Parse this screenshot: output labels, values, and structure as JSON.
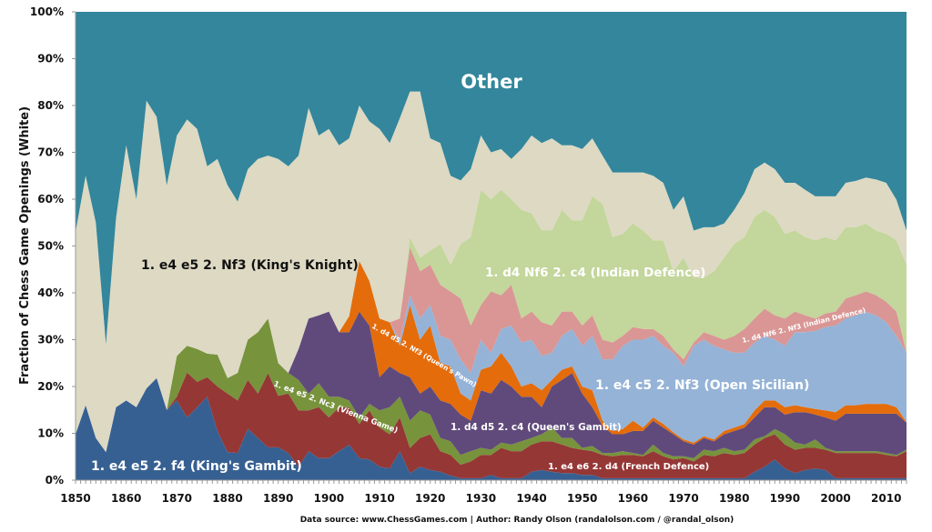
{
  "chart_data": {
    "type": "area",
    "stacked": true,
    "ylabel": "Fraction of Chess Game Openings (White)",
    "xlabel": "",
    "footer": "Data source: www.ChessGames.com | Author: Randy Olson (randalolson.com / @randal_olson)",
    "xlim": [
      1850,
      2014
    ],
    "ylim": [
      0,
      100
    ],
    "x_ticks": [
      "1850",
      "1860",
      "1870",
      "1880",
      "1890",
      "1900",
      "1910",
      "1920",
      "1930",
      "1940",
      "1950",
      "1960",
      "1970",
      "1980",
      "1990",
      "2000",
      "2010"
    ],
    "y_ticks": [
      "0%",
      "10%",
      "20%",
      "30%",
      "40%",
      "50%",
      "60%",
      "70%",
      "80%",
      "90%",
      "100%"
    ],
    "grid": false,
    "legend": "none (labels drawn directly on areas)",
    "x": [
      1850,
      1852,
      1854,
      1856,
      1858,
      1860,
      1862,
      1864,
      1866,
      1868,
      1870,
      1872,
      1874,
      1876,
      1878,
      1880,
      1882,
      1884,
      1886,
      1888,
      1890,
      1892,
      1894,
      1896,
      1898,
      1900,
      1902,
      1904,
      1906,
      1908,
      1910,
      1912,
      1914,
      1916,
      1918,
      1920,
      1922,
      1924,
      1926,
      1928,
      1930,
      1932,
      1934,
      1936,
      1938,
      1940,
      1942,
      1944,
      1946,
      1948,
      1950,
      1952,
      1954,
      1956,
      1958,
      1960,
      1962,
      1964,
      1966,
      1968,
      1970,
      1972,
      1974,
      1976,
      1978,
      1980,
      1982,
      1984,
      1986,
      1988,
      1990,
      1992,
      1994,
      1996,
      1998,
      2000,
      2002,
      2004,
      2006,
      2008,
      2010,
      2012,
      2014
    ],
    "series": [
      {
        "name": "1. e4 e5 2. f4 (King's Gambit)",
        "color": "#376092",
        "text_color": "#ffffff",
        "values": [
          9.8,
          16,
          9,
          6,
          15.6,
          17,
          15.6,
          19.6,
          21.8,
          15,
          17,
          13.4,
          15.6,
          17.8,
          10.5,
          6,
          5.8,
          11,
          9,
          7,
          7,
          5.8,
          2.9,
          6.2,
          4.7,
          4.7,
          6.2,
          7.6,
          4.7,
          4.4,
          2.9,
          2.5,
          6.2,
          1.5,
          2.9,
          2.2,
          1.8,
          1,
          0.4,
          0.4,
          0.4,
          1.1,
          0.4,
          0.4,
          0.4,
          1.8,
          2.2,
          1.8,
          1.5,
          1.5,
          1.1,
          1.1,
          0.4,
          0.4,
          0.4,
          0.4,
          0.4,
          0.4,
          0.4,
          0.4,
          0.4,
          0.4,
          0.4,
          0.4,
          0.4,
          0.4,
          0.4,
          1.8,
          2.9,
          4.4,
          2.5,
          1.5,
          2.2,
          2.5,
          2.2,
          0.4,
          0.4,
          0.4,
          0.4,
          0.4,
          0.4,
          0.4,
          0.4
        ]
      },
      {
        "name": "1. e4 e6 2. d4 (French Defence)",
        "color": "#953735",
        "text_color": "#ffffff",
        "values": [
          0,
          0,
          0,
          0,
          0,
          0,
          0,
          0,
          0,
          0,
          0.8,
          9.6,
          5.4,
          4.2,
          9.5,
          12.5,
          11.2,
          10.4,
          9.5,
          15.9,
          11,
          12.7,
          12,
          8.7,
          10.9,
          8.7,
          9.4,
          8,
          7.3,
          10.5,
          8.3,
          7.3,
          7.2,
          5.4,
          6.1,
          7.6,
          4.4,
          4.4,
          2.9,
          3.6,
          5,
          4.3,
          6.5,
          5.8,
          5.8,
          5.8,
          6.1,
          6.5,
          6.1,
          5.4,
          5.4,
          5.1,
          5,
          4.7,
          5,
          5,
          4.7,
          5.8,
          4.7,
          4,
          4.3,
          3.6,
          5,
          4.7,
          5.4,
          5,
          5.4,
          5.8,
          6.1,
          5.4,
          5.1,
          5,
          4.7,
          4.4,
          4.3,
          5.4,
          5.4,
          5.4,
          5.4,
          5.4,
          5,
          4.7,
          5.8
        ]
      },
      {
        "name": "1. e4 e5 2. Nc3 (Vienna Game)",
        "color": "#77933C",
        "text_color": "#ffffff",
        "values": [
          0,
          0,
          0,
          0,
          0,
          0,
          0,
          0,
          0,
          0,
          8.7,
          5.7,
          7,
          5,
          6.8,
          3.3,
          5.9,
          8.6,
          13.1,
          11.6,
          7,
          4.4,
          6.5,
          3.6,
          5.1,
          4.4,
          2.2,
          1.4,
          1.4,
          1.4,
          3.7,
          5.8,
          4.4,
          5.8,
          5.9,
          4.2,
          2.8,
          2.9,
          2.1,
          2.2,
          1.5,
          1.1,
          1.1,
          1.4,
          2.1,
          1.4,
          1.5,
          2.9,
          1.4,
          2.1,
          0.4,
          1.1,
          0.4,
          0.7,
          0.8,
          0.4,
          0.3,
          1.4,
          0.7,
          0.7,
          0.4,
          0.7,
          1.1,
          1.1,
          1.1,
          0.8,
          0.7,
          1.1,
          0.4,
          1.1,
          2.2,
          1.5,
          0.7,
          1.8,
          0.4,
          0.4,
          0.4,
          0.4,
          0.4,
          0.4,
          0.4,
          0.3,
          0.3
        ]
      },
      {
        "name": "1. d4 d5 2. c4 (Queen's Gambit)",
        "color": "#604A7B",
        "text_color": "#ffffff",
        "values": [
          0,
          0,
          0,
          0,
          0,
          0,
          0,
          0,
          0,
          0,
          0,
          0,
          0,
          0,
          0,
          0,
          0,
          0,
          0,
          0,
          0,
          0,
          6.6,
          16,
          14.5,
          18.2,
          13.8,
          14.6,
          22.6,
          16.7,
          7.1,
          8.7,
          5.1,
          9.3,
          3.6,
          6,
          8,
          8,
          8.6,
          6.5,
          12.3,
          12,
          13.4,
          12.4,
          9.5,
          8.8,
          5.8,
          8.8,
          12.4,
          13.9,
          11.6,
          8.3,
          5.8,
          4,
          3.6,
          4.7,
          5.1,
          5.1,
          5.4,
          4.7,
          3.2,
          2.9,
          2.5,
          2.1,
          2.9,
          4.3,
          4.7,
          4.7,
          6.2,
          4.7,
          4.2,
          6.5,
          6.9,
          5.3,
          6.5,
          6.5,
          8,
          8,
          8,
          8,
          8.4,
          8.8,
          5.8
        ]
      },
      {
        "name": "1. d4 d5 2. Nf3 (Queen's Pawn)",
        "color": "#E46C0A",
        "text_color": "#ffffff",
        "values": [
          0,
          0,
          0,
          0,
          0,
          0,
          0,
          0,
          0,
          0,
          0,
          0,
          0,
          0,
          0,
          0,
          0,
          0,
          0,
          0,
          0,
          0,
          0,
          0,
          0,
          0,
          0,
          3.4,
          10.8,
          9.5,
          12.5,
          9.4,
          5.8,
          15.4,
          11.5,
          13,
          8,
          8,
          4.5,
          4.3,
          4.4,
          5.8,
          5.8,
          4.3,
          2.2,
          2.9,
          3.6,
          1.4,
          2.2,
          1.4,
          1.5,
          3.6,
          1.1,
          0.7,
          1.1,
          2.2,
          0.7,
          0.7,
          0.8,
          0.4,
          0.4,
          0.4,
          0.4,
          0.4,
          0.7,
          0.7,
          0.8,
          1.5,
          1.4,
          1.4,
          1.6,
          1.5,
          1.1,
          1.2,
          1.5,
          1.8,
          1.8,
          1.8,
          2.1,
          2.1,
          2.1,
          1.4,
          0.1
        ]
      },
      {
        "name": "1. e4 c5 2. Nf3 (Open Sicilian)",
        "color": "#95B3D7",
        "text_color": "#ffffff",
        "values": [
          0,
          0,
          0,
          0,
          0,
          0,
          0,
          0,
          0,
          0,
          0,
          0,
          0,
          0,
          0,
          0,
          0,
          0,
          0,
          0,
          0,
          0,
          0,
          0,
          0,
          0,
          0,
          0,
          0,
          0,
          0,
          0,
          1.3,
          2.1,
          4.5,
          4.4,
          5.8,
          5.7,
          7.3,
          5.9,
          6.4,
          2.9,
          5.1,
          8.7,
          9.4,
          9.3,
          7.3,
          5.8,
          7.2,
          8,
          8.7,
          11.6,
          13.1,
          15.3,
          17.8,
          17.3,
          18.8,
          17.4,
          16.7,
          17,
          15.6,
          20.7,
          20.6,
          20,
          17.4,
          16,
          15.2,
          14.5,
          13.8,
          13,
          13.1,
          15.6,
          16,
          16.7,
          17.8,
          18.5,
          18.5,
          19.2,
          19.6,
          18.9,
          17.4,
          15.2,
          14.8
        ]
      },
      {
        "name": "1. d4 Nf6 2. Nf3 (Indian Defence)",
        "color": "#D99694",
        "text_color": "#ffffff",
        "values": [
          0,
          0,
          0,
          0,
          0,
          0,
          0,
          0,
          0,
          0,
          0,
          0,
          0,
          0,
          0,
          0,
          0,
          0,
          0,
          0,
          0,
          0,
          0,
          0,
          0,
          0,
          0,
          0,
          0,
          0,
          0,
          0,
          4.5,
          10.2,
          10.1,
          8.6,
          10.9,
          10.3,
          13,
          10.1,
          7.4,
          13.1,
          7.2,
          8.7,
          5.1,
          6,
          7.2,
          5.8,
          5.2,
          3.7,
          4.3,
          4.4,
          4.2,
          3.6,
          2.1,
          2.7,
          2.3,
          1.5,
          2.1,
          0.7,
          1.5,
          0.7,
          1.6,
          2.1,
          2.1,
          3.6,
          5.1,
          5.1,
          5.8,
          5.2,
          5.8,
          4.4,
          3.6,
          2.6,
          2.9,
          3,
          4.3,
          4.3,
          4.4,
          4.3,
          4.4,
          5.2,
          0.1
        ]
      },
      {
        "name": "1. d4 Nf6 2. c4 (Indian Defence)",
        "color": "#C3D69B",
        "text_color": "#ffffff",
        "values": [
          0,
          0,
          0,
          0,
          0,
          0,
          0,
          0,
          0,
          0,
          0,
          0,
          0,
          0,
          0,
          0,
          0,
          0,
          0,
          0,
          0,
          0,
          0,
          0,
          0,
          0,
          0,
          0,
          0,
          0,
          0,
          0,
          0,
          2.2,
          2.9,
          3,
          8.7,
          5.7,
          11.6,
          18.9,
          24.6,
          19.7,
          22.5,
          18.3,
          23.2,
          21,
          19.6,
          20.3,
          21.7,
          19.5,
          22.5,
          25.4,
          29,
          22.5,
          21.8,
          22.1,
          21,
          18.9,
          20.4,
          16.7,
          21.7,
          13.8,
          11.6,
          13.8,
          17.5,
          19.6,
          19.6,
          21.7,
          21.1,
          21,
          18.1,
          17.3,
          16.7,
          16.7,
          16.3,
          15.2,
          15.2,
          14.5,
          14.5,
          13.8,
          14.5,
          15.2,
          18.7
        ]
      },
      {
        "name": "1. e4 e5 2. Nf3 (King's Knight)",
        "color": "#DDD9C3",
        "text_color": "#111111",
        "values": [
          43.2,
          49,
          46,
          23,
          40.4,
          54.5,
          44.4,
          61.4,
          55.8,
          48,
          47.1,
          48.3,
          47,
          40,
          41.8,
          41.2,
          36.6,
          36.4,
          37,
          34.8,
          43.6,
          44.1,
          41.3,
          45,
          38.4,
          39,
          39.9,
          38,
          33.2,
          34.1,
          40.5,
          38.3,
          42.8,
          31.1,
          35.5,
          24,
          21.6,
          19,
          13.6,
          14.5,
          11.6,
          10,
          8.7,
          8.6,
          13,
          16.6,
          18.7,
          19.7,
          13.8,
          16,
          15.2,
          12.4,
          10.3,
          13.8,
          13.1,
          10.9,
          12.4,
          13.8,
          12.3,
          13.1,
          13.1,
          10.1,
          10.8,
          9.4,
          7.3,
          7.3,
          9.4,
          10.2,
          10.1,
          10.2,
          10.9,
          10.2,
          10.1,
          9.4,
          8.7,
          9.4,
          9.5,
          9.9,
          9.8,
          10.9,
          10.9,
          8.7,
          7.3
        ]
      },
      {
        "name": "Other",
        "color": "#33869B",
        "text_color": "#ffffff",
        "values": [
          47,
          35,
          45,
          71,
          44,
          28.5,
          40,
          19,
          22.4,
          37,
          26.4,
          23,
          25,
          33,
          31.4,
          37,
          40.5,
          33.6,
          31.4,
          30.7,
          31.4,
          33,
          30.7,
          20.5,
          26.4,
          25,
          28.5,
          27,
          20,
          23.4,
          25,
          28,
          22.7,
          17,
          17,
          27,
          28,
          35,
          36,
          33.6,
          26.4,
          30,
          29.3,
          31.4,
          29.3,
          26.4,
          28,
          27,
          28.5,
          28.5,
          29.3,
          27,
          30.7,
          34.3,
          34.3,
          34.3,
          34.3,
          35,
          36.5,
          42.3,
          39.4,
          46.7,
          46,
          46,
          45.2,
          42.3,
          38.7,
          33.6,
          32.2,
          33.6,
          36.5,
          36.5,
          38,
          39.4,
          39.4,
          39.4,
          36.5,
          36.1,
          35.4,
          35.8,
          36.5,
          40.1,
          46.7
        ]
      }
    ]
  }
}
